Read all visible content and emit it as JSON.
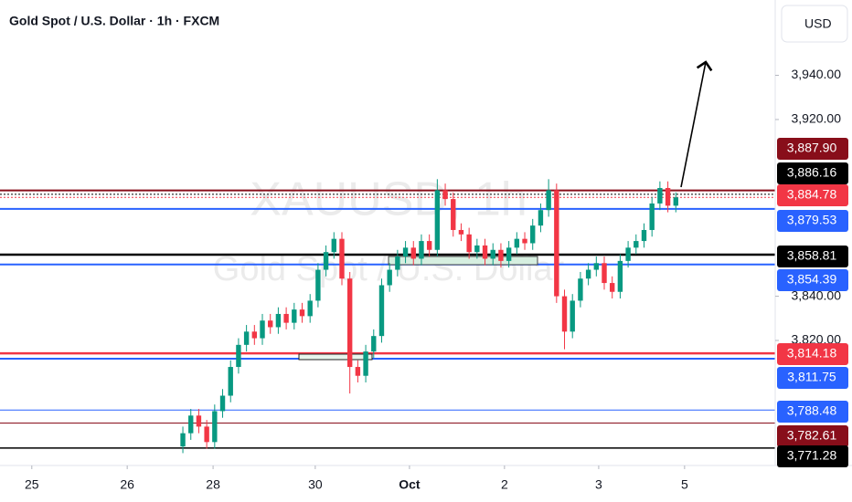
{
  "chart_data": {
    "type": "candlestick",
    "title": "Gold Spot / U.S. Dollar · 1h · FXCM",
    "currency": "USD",
    "watermark": [
      "XAUUSD, 1h",
      "Gold Spot / U.S. Dollar"
    ],
    "up_color": "#089981",
    "down_color": "#f23645",
    "x": [
      46,
      48,
      50,
      52,
      54,
      56,
      58,
      60,
      62,
      64,
      66,
      68,
      70,
      72,
      74,
      76,
      78,
      80,
      82,
      84,
      86,
      88,
      90,
      92,
      94,
      96,
      98,
      100,
      102,
      104,
      106,
      108,
      110,
      112,
      114,
      116,
      118,
      120,
      122,
      124,
      126,
      128,
      130,
      132,
      134,
      136,
      138,
      140,
      142,
      144,
      146,
      148,
      150,
      152,
      154,
      156,
      158,
      160,
      162,
      164,
      166,
      168,
      170
    ],
    "open": [
      3772,
      3778,
      3786,
      3781,
      3774,
      3788,
      3795,
      3808,
      3818,
      3824,
      3821,
      3829,
      3826,
      3832,
      3828,
      3834,
      3831,
      3838,
      3852,
      3860,
      3866,
      3848,
      3808,
      3804,
      3815,
      3822,
      3845,
      3852,
      3858,
      3862,
      3857,
      3865,
      3861,
      3888,
      3884,
      3870,
      3868,
      3860,
      3863,
      3857,
      3861,
      3856,
      3862,
      3866,
      3864,
      3872,
      3879,
      3888,
      3840,
      3824,
      3838,
      3848,
      3852,
      3855,
      3846,
      3842,
      3856,
      3862,
      3865,
      3870,
      3882,
      3889,
      3881
    ],
    "high": [
      3781,
      3789,
      3789,
      3784,
      3791,
      3798,
      3811,
      3821,
      3827,
      3827,
      3832,
      3832,
      3835,
      3835,
      3837,
      3837,
      3841,
      3855,
      3863,
      3869,
      3869,
      3851,
      3811,
      3818,
      3825,
      3848,
      3855,
      3861,
      3865,
      3865,
      3868,
      3868,
      3893,
      3891,
      3887,
      3873,
      3871,
      3866,
      3866,
      3864,
      3864,
      3865,
      3869,
      3869,
      3875,
      3882,
      3893,
      3891,
      3843,
      3841,
      3851,
      3855,
      3858,
      3858,
      3849,
      3859,
      3865,
      3868,
      3873,
      3885,
      3892,
      3892,
      3887
    ],
    "low": [
      3769,
      3775,
      3778,
      3771,
      3771,
      3785,
      3792,
      3805,
      3815,
      3818,
      3818,
      3823,
      3823,
      3825,
      3825,
      3828,
      3828,
      3835,
      3849,
      3857,
      3845,
      3796,
      3801,
      3801,
      3812,
      3819,
      3842,
      3849,
      3855,
      3854,
      3854,
      3858,
      3858,
      3881,
      3867,
      3865,
      3857,
      3857,
      3854,
      3854,
      3853,
      3853,
      3859,
      3861,
      3861,
      3869,
      3876,
      3837,
      3816,
      3821,
      3835,
      3845,
      3849,
      3843,
      3839,
      3839,
      3853,
      3859,
      3862,
      3867,
      3879,
      3878,
      3878
    ],
    "close": [
      3778,
      3786,
      3781,
      3774,
      3788,
      3795,
      3808,
      3818,
      3824,
      3821,
      3829,
      3826,
      3832,
      3828,
      3834,
      3831,
      3838,
      3852,
      3860,
      3866,
      3848,
      3808,
      3804,
      3815,
      3822,
      3845,
      3852,
      3858,
      3862,
      3857,
      3865,
      3861,
      3888,
      3884,
      3870,
      3868,
      3860,
      3863,
      3857,
      3861,
      3856,
      3862,
      3866,
      3864,
      3872,
      3879,
      3888,
      3840,
      3824,
      3838,
      3848,
      3852,
      3855,
      3846,
      3842,
      3856,
      3862,
      3865,
      3870,
      3882,
      3889,
      3881,
      3884.78
    ],
    "xlim": [
      0,
      195
    ],
    "xticks": [
      {
        "value": 8,
        "label": "25"
      },
      {
        "value": 32,
        "label": "26"
      },
      {
        "value": 53.6,
        "label": "28"
      },
      {
        "value": 79.3,
        "label": "30"
      },
      {
        "value": 103,
        "label": "Oct"
      },
      {
        "value": 126.9,
        "label": "2"
      },
      {
        "value": 150.6,
        "label": "3"
      },
      {
        "value": 172.2,
        "label": "5"
      }
    ],
    "ylim": [
      3763.4,
      3974.1
    ],
    "yticks": [
      {
        "value": 3940,
        "label": "3,940.00"
      },
      {
        "value": 3920,
        "label": "3,920.00"
      },
      {
        "value": 3840,
        "label": "3,840.00"
      },
      {
        "value": 3820,
        "label": "3,820.00"
      }
    ],
    "levels": [
      {
        "value": 3887.9,
        "label": "3,887.90",
        "color": "#880e1a"
      },
      {
        "value": 3886.16,
        "label": "3,886.16",
        "color": "#000000"
      },
      {
        "value": 3884.78,
        "label": "3,884.78",
        "color": "#f23645"
      },
      {
        "value": 3879.53,
        "label": "3,879.53",
        "color": "#2962ff"
      },
      {
        "value": 3858.81,
        "label": "3,858.81",
        "color": "#000000"
      },
      {
        "value": 3854.39,
        "label": "3,854.39",
        "color": "#2962ff"
      },
      {
        "value": 3814.18,
        "label": "3,814.18",
        "color": "#f23645"
      },
      {
        "value": 3811.75,
        "label": "3,811.75",
        "color": "#2962ff"
      },
      {
        "value": 3788.48,
        "label": "3,788.48",
        "color": "#2962ff"
      },
      {
        "value": 3782.61,
        "label": "3,782.61",
        "color": "#880e1a"
      },
      {
        "value": 3771.28,
        "label": "3,771.28",
        "color": "#000000"
      }
    ]
  }
}
